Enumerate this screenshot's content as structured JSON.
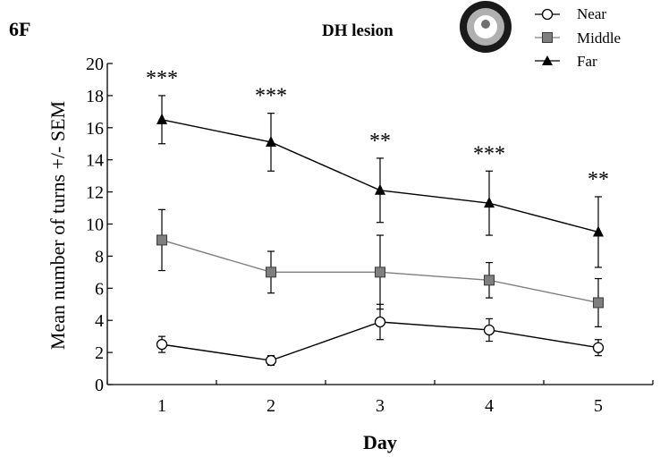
{
  "panel_label": "6F",
  "inset_title": "DH lesion",
  "chart_data": {
    "type": "line",
    "xlabel": "Day",
    "ylabel": "Mean number of turns +/- SEM",
    "categories": [
      "1",
      "2",
      "3",
      "4",
      "5"
    ],
    "ylim": [
      0,
      20
    ],
    "yticks": [
      "0",
      "2",
      "4",
      "6",
      "8",
      "10",
      "12",
      "14",
      "16",
      "18",
      "20"
    ],
    "grid": false,
    "legend_position": "top-right",
    "series": [
      {
        "name": "Near",
        "marker": "open-circle",
        "color": "#000000",
        "values": [
          2.5,
          1.5,
          3.9,
          3.4,
          2.3
        ],
        "errors": [
          0.5,
          0.3,
          1.1,
          0.7,
          0.5
        ]
      },
      {
        "name": "Middle",
        "marker": "grey-square",
        "color": "#7f7f7f",
        "values": [
          9.0,
          7.0,
          7.0,
          6.5,
          5.1
        ],
        "errors": [
          1.9,
          1.3,
          2.3,
          1.1,
          1.5
        ]
      },
      {
        "name": "Far",
        "marker": "filled-triangle",
        "color": "#000000",
        "values": [
          16.5,
          15.1,
          12.1,
          11.3,
          9.5
        ],
        "errors": [
          1.5,
          1.8,
          2.0,
          2.0,
          2.2
        ]
      }
    ],
    "annotations": [
      "***",
      "***",
      "**",
      "***",
      "**"
    ]
  }
}
